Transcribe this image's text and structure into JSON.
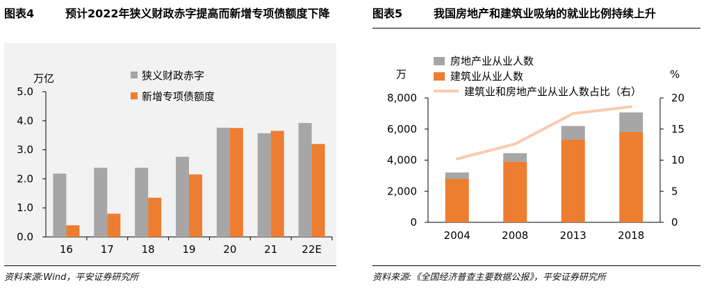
{
  "left": {
    "figure_label": "图表4",
    "title": "预计2022年狭义财政赤字提高而新增专项债额度下降",
    "source": "资料来源:Wind，平安证券研究所"
  },
  "right": {
    "figure_label": "图表5",
    "title": "我国房地产和建筑业吸纳的就业比例持续上升",
    "source": "资料来源:《全国经济普查主要数据公报》，平安证券研究所"
  },
  "colors": {
    "gray": "#a6a6a6",
    "orange": "#ed7d31",
    "peach": "#f8cbad"
  },
  "chart_data": [
    {
      "type": "bar",
      "ylabel": "万亿",
      "categories": [
        "16",
        "17",
        "18",
        "19",
        "20",
        "21",
        "22E"
      ],
      "ylim": [
        0,
        5
      ],
      "yticks": [
        "0.0",
        "1.0",
        "2.0",
        "3.0",
        "4.0",
        "5.0"
      ],
      "legend_position": "top-center",
      "grid": false,
      "series": [
        {
          "name": "狭义财政赤字",
          "values": [
            2.18,
            2.38,
            2.38,
            2.76,
            3.76,
            3.57,
            3.92
          ]
        },
        {
          "name": "新增专项债额度",
          "values": [
            0.4,
            0.8,
            1.35,
            2.15,
            3.75,
            3.65,
            3.2
          ]
        }
      ]
    },
    {
      "type": "bar",
      "ylabel": "万",
      "y2label": "%",
      "categories": [
        "2004",
        "2008",
        "2013",
        "2018"
      ],
      "ylim": [
        0,
        8000
      ],
      "y2lim": [
        0,
        20
      ],
      "yticks": [
        "0",
        "2,000",
        "4,000",
        "6,000",
        "8,000"
      ],
      "y2ticks": [
        "0",
        "5",
        "10",
        "15",
        "20"
      ],
      "legend_position": "top-left",
      "grid": false,
      "stacked": true,
      "series": [
        {
          "name": "建筑业从业人数",
          "values": [
            2791,
            3901,
            5320,
            5809
          ]
        },
        {
          "name": "房地产业从业人数",
          "values": [
            415,
            545,
            880,
            1260
          ]
        },
        {
          "name": "建筑业和房地产业从业人数占比（右）",
          "type": "line",
          "axis": "right",
          "values": [
            10.2,
            12.6,
            17.5,
            18.6
          ]
        }
      ]
    }
  ]
}
